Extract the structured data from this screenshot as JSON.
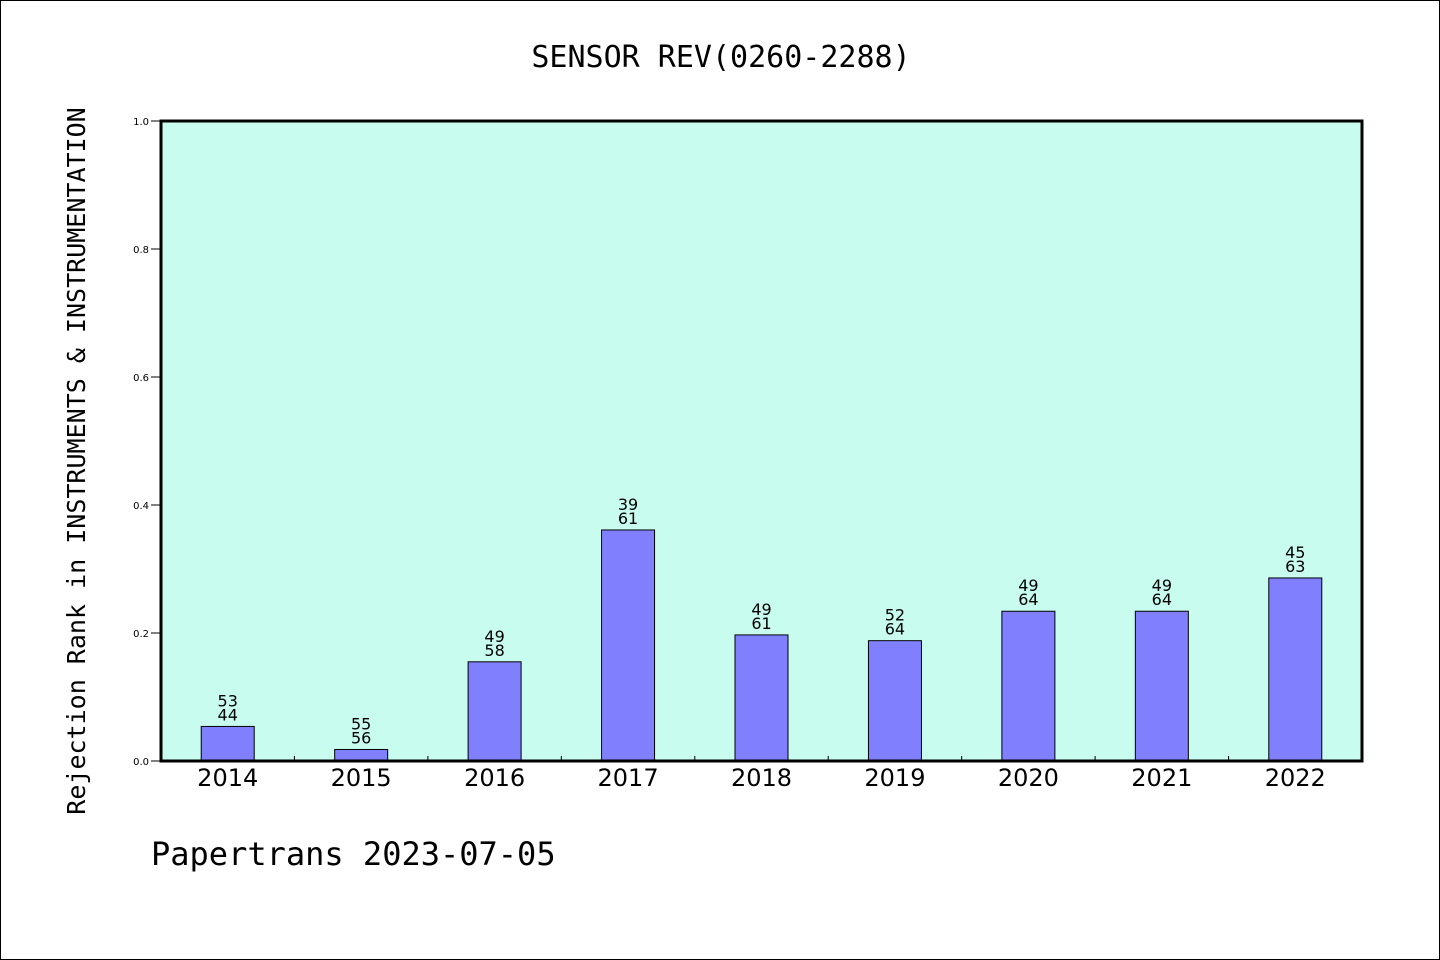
{
  "chart_data": {
    "type": "bar",
    "title": "SENSOR REV(0260-2288)",
    "ylabel": "Rejection Rank in INSTRUMENTS & INSTRUMENTATION",
    "xlabel": "",
    "footer": "Papertrans 2023-07-05",
    "ylim": [
      0,
      1.0
    ],
    "y_ticks": [
      "0.0",
      "0.2",
      "0.4",
      "0.6",
      "0.8",
      "1.0"
    ],
    "categories": [
      "2014",
      "2015",
      "2016",
      "2017",
      "2018",
      "2019",
      "2020",
      "2021",
      "2022"
    ],
    "values": [
      0.054,
      0.018,
      0.155,
      0.361,
      0.197,
      0.188,
      0.234,
      0.234,
      0.286
    ],
    "label_top": [
      "53",
      "55",
      "49",
      "39",
      "49",
      "52",
      "49",
      "49",
      "45"
    ],
    "label_bottom": [
      "44",
      "56",
      "58",
      "61",
      "61",
      "64",
      "64",
      "64",
      "63"
    ],
    "colors": {
      "plot_background": "#c8fcee",
      "bar_fill": "#8080ff",
      "bar_stroke": "#000000",
      "text": "#000000"
    }
  }
}
